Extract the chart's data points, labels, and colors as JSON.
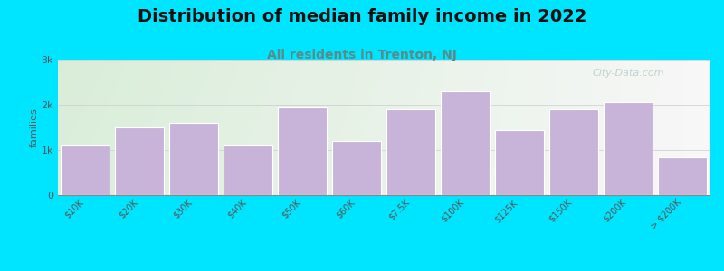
{
  "title": "Distribution of median family income in 2022",
  "subtitle": "All residents in Trenton, NJ",
  "categories": [
    "$10K",
    "$20K",
    "$30K",
    "$40K",
    "$50K",
    "$60K",
    "$7.5K",
    "$100K",
    "$125K",
    "$150K",
    "$200K",
    "> $200K"
  ],
  "values": [
    1100,
    1500,
    1600,
    1100,
    1950,
    1200,
    1900,
    2300,
    1450,
    1900,
    2060,
    850
  ],
  "bar_color": "#c8b4d8",
  "bar_edge_color": "#ffffff",
  "background_color": "#00e5ff",
  "plot_bg_color_left": "#d8edda",
  "plot_bg_color_right": "#f5f5f5",
  "ylabel": "families",
  "ylim": [
    0,
    3000
  ],
  "yticks": [
    0,
    1000,
    2000,
    3000
  ],
  "ytick_labels": [
    "0",
    "1k",
    "2k",
    "3k"
  ],
  "title_fontsize": 14,
  "subtitle_fontsize": 10,
  "subtitle_color": "#5a8a8a",
  "watermark_text": "City-Data.com",
  "watermark_color": "#b8cccc",
  "title_color": "#111111",
  "axis_color": "#888888",
  "tick_color": "#555555",
  "grid_color": "#cccccc"
}
